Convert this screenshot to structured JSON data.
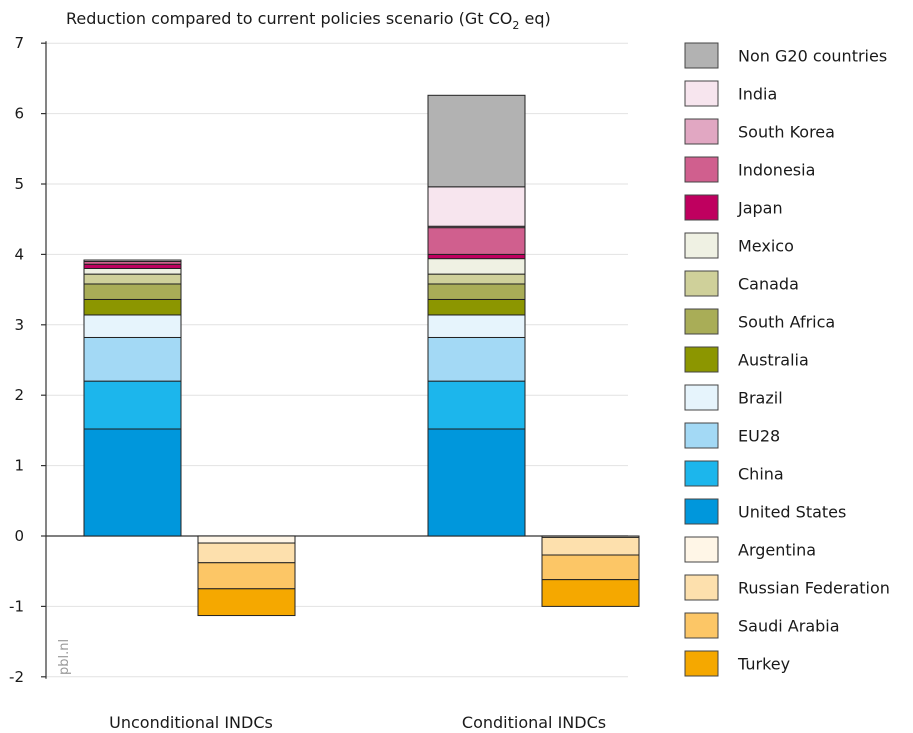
{
  "colors": {
    "United States": "#0097dc",
    "China": "#1cb6ec",
    "EU28": "#a3d9f5",
    "Brazil": "#e6f4fc",
    "Australia": "#8c9600",
    "South Africa": "#a9ad57",
    "Canada": "#cfd09a",
    "Mexico": "#eff1e3",
    "Japan": "#bf005f",
    "Indonesia": "#d05f8e",
    "South Korea": "#e1a7c2",
    "India": "#f7e5ee",
    "Non G20 countries": "#b2b2b2",
    "Argentina": "#fff6e7",
    "Russian Federation": "#fde0ad",
    "Saudi Arabia": "#fcc666",
    "Turkey": "#f5a800"
  },
  "chart_data": {
    "type": "bar",
    "stacked": true,
    "title": "Reduction compared to current policies scenario (Gt CO2 eq)",
    "title_main": "Reduction compared to current policies scenario (Gt CO",
    "title_sub": "2",
    "title_tail": " eq)",
    "ylim": [
      -2,
      7
    ],
    "yticks": [
      -2,
      -1,
      0,
      1,
      2,
      3,
      4,
      5,
      6,
      7
    ],
    "ytick_labels": [
      "-2",
      "-1",
      "0",
      "1",
      "2",
      "3",
      "4",
      "5",
      "6",
      "7"
    ],
    "categories": [
      "Unconditional INDCs",
      "Conditional INDCs"
    ],
    "grid": true,
    "legend_position": "right",
    "watermark": "pbl.nl",
    "series": [
      {
        "name": "United States",
        "values": [
          1.52,
          1.52
        ]
      },
      {
        "name": "China",
        "values": [
          0.68,
          0.68
        ]
      },
      {
        "name": "EU28",
        "values": [
          0.62,
          0.62
        ]
      },
      {
        "name": "Brazil",
        "values": [
          0.32,
          0.32
        ]
      },
      {
        "name": "Australia",
        "values": [
          0.22,
          0.22
        ]
      },
      {
        "name": "South Africa",
        "values": [
          0.22,
          0.22
        ]
      },
      {
        "name": "Canada",
        "values": [
          0.14,
          0.14
        ]
      },
      {
        "name": "Mexico",
        "values": [
          0.08,
          0.22
        ]
      },
      {
        "name": "Japan",
        "values": [
          0.06,
          0.06
        ]
      },
      {
        "name": "Indonesia",
        "values": [
          0.04,
          0.38
        ]
      },
      {
        "name": "South Korea",
        "values": [
          0.0,
          0.02
        ]
      },
      {
        "name": "India",
        "values": [
          0.02,
          0.56
        ]
      },
      {
        "name": "Non G20 countries",
        "values": [
          0.0,
          1.3
        ]
      },
      {
        "name": "Argentina",
        "values": [
          -0.1,
          -0.02
        ]
      },
      {
        "name": "Russian Federation",
        "values": [
          -0.28,
          -0.25
        ]
      },
      {
        "name": "Saudi Arabia",
        "values": [
          -0.37,
          -0.35
        ]
      },
      {
        "name": "Turkey",
        "values": [
          -0.38,
          -0.38
        ]
      }
    ],
    "legend": [
      "Non G20 countries",
      "India",
      "South Korea",
      "Indonesia",
      "Japan",
      "Mexico",
      "Canada",
      "South Africa",
      "Australia",
      "Brazil",
      "EU28",
      "China",
      "United States",
      "Argentina",
      "Russian Federation",
      "Saudi Arabia",
      "Turkey"
    ]
  }
}
